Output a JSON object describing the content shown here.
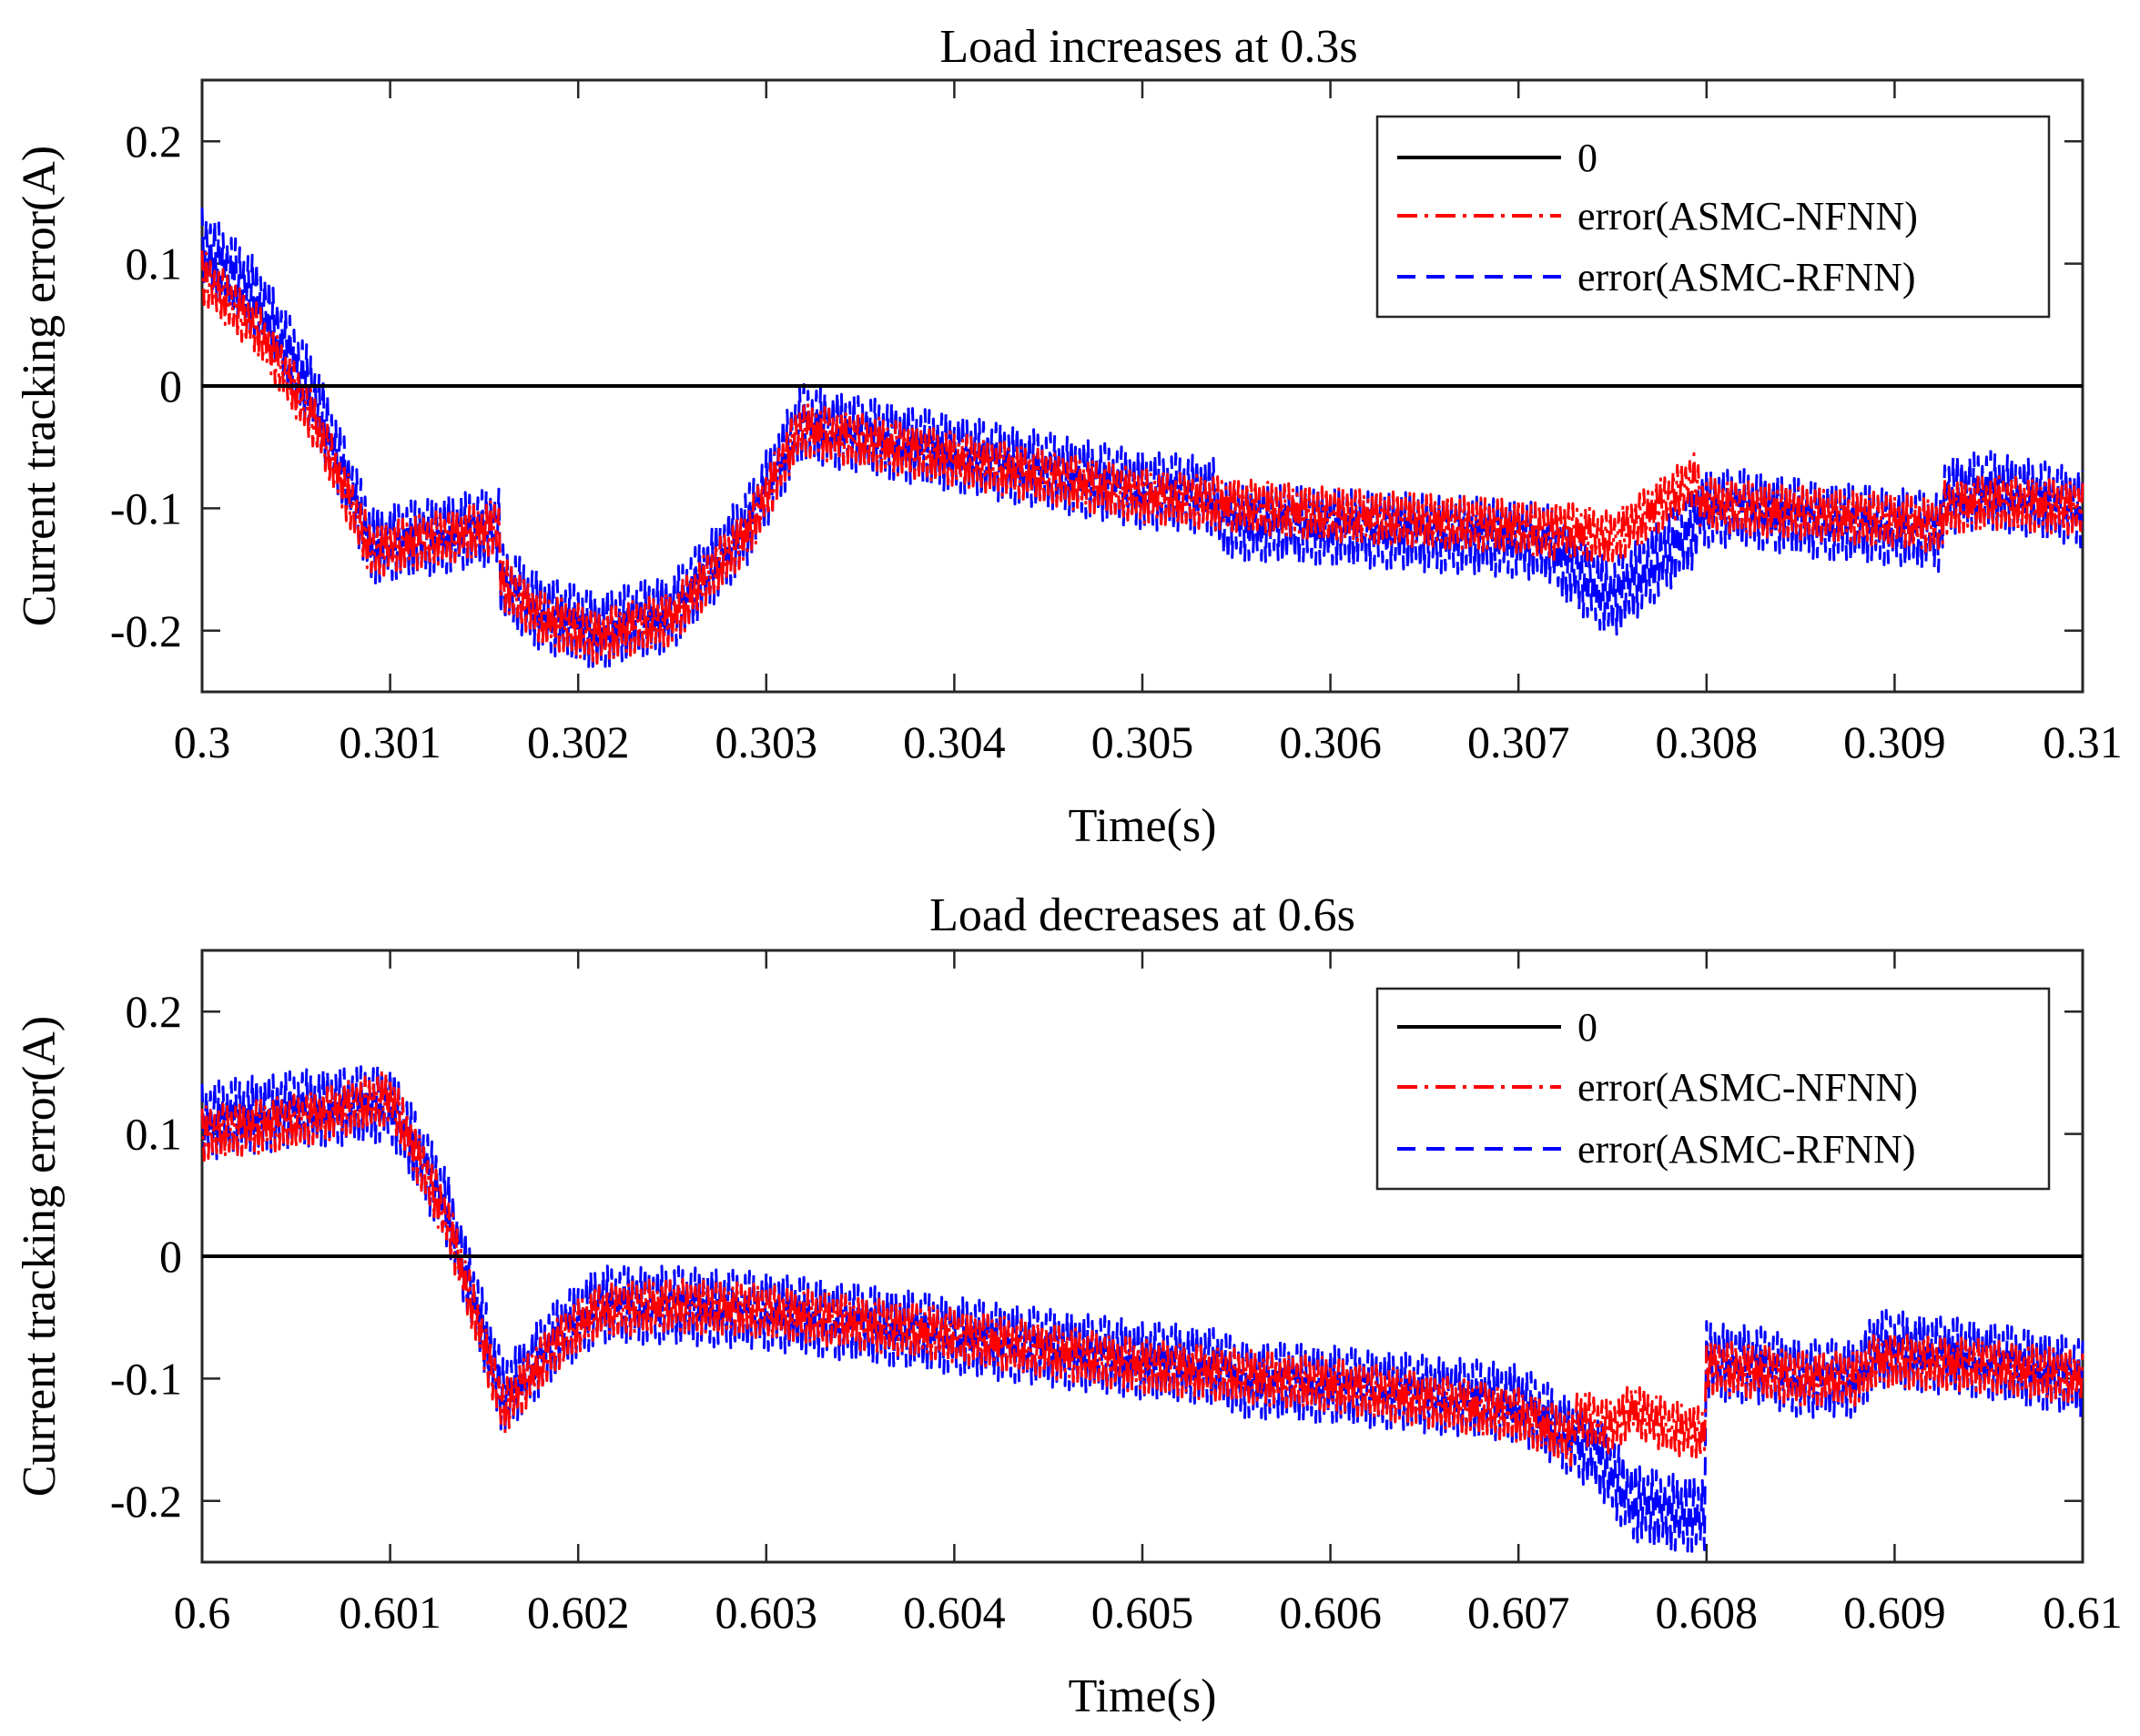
{
  "chart_data": [
    {
      "type": "line",
      "title": "Load increases at 0.3s",
      "xlabel": "Time(s)",
      "ylabel": "Current tracking error(A)",
      "xlim": [
        0.3,
        0.31
      ],
      "ylim": [
        -0.25,
        0.25
      ],
      "xticks": [
        0.3,
        0.301,
        0.302,
        0.303,
        0.304,
        0.305,
        0.306,
        0.307,
        0.308,
        0.309,
        0.31
      ],
      "xtick_labels": [
        "0.3",
        "0.301",
        "0.302",
        "0.303",
        "0.304",
        "0.305",
        "0.306",
        "0.307",
        "0.308",
        "0.309",
        "0.31"
      ],
      "yticks": [
        0.2,
        0.1,
        0,
        -0.1,
        -0.2
      ],
      "ytick_labels": [
        "0.2",
        "0.1",
        "0",
        "-0.1",
        "-0.2"
      ],
      "legend_position": "top-right",
      "series": [
        {
          "name": "0",
          "color": "#000000",
          "style": "solid",
          "ripple": 0,
          "x": [
            0.3,
            0.31
          ],
          "y": [
            0,
            0
          ]
        },
        {
          "name": "error(ASMC-NFNN)",
          "color": "#ff0000",
          "style": "dashdot",
          "ripple": 0.022,
          "x": [
            0.3,
            0.3003,
            0.3006,
            0.3009,
            0.30158,
            0.30159,
            0.3018,
            0.3021,
            0.3025,
            0.3029,
            0.30318,
            0.3035,
            0.304,
            0.305,
            0.306,
            0.307,
            0.30719,
            0.3072,
            0.3075,
            0.30795,
            0.30796,
            0.3082,
            0.3086,
            0.309,
            0.30925,
            0.30926,
            0.3095,
            0.31
          ],
          "y": [
            0.09,
            0.045,
            -0.03,
            -0.135,
            -0.115,
            -0.16,
            -0.19,
            -0.205,
            -0.19,
            -0.12,
            -0.035,
            -0.045,
            -0.06,
            -0.09,
            -0.105,
            -0.115,
            -0.12,
            -0.115,
            -0.125,
            -0.075,
            -0.095,
            -0.1,
            -0.105,
            -0.11,
            -0.115,
            -0.1,
            -0.095,
            -0.1
          ]
        },
        {
          "name": "error(ASMC-RFNN)",
          "color": "#0000ff",
          "style": "dashed",
          "ripple": 0.032,
          "x": [
            0.3,
            0.3003,
            0.3006,
            0.3009,
            0.30158,
            0.30159,
            0.3018,
            0.3021,
            0.3025,
            0.3029,
            0.30318,
            0.3035,
            0.304,
            0.305,
            0.30539,
            0.3054,
            0.306,
            0.307,
            0.30719,
            0.3072,
            0.3075,
            0.30795,
            0.30796,
            0.3082,
            0.3086,
            0.309,
            0.30925,
            0.30926,
            0.3095,
            0.31
          ],
          "y": [
            0.115,
            0.07,
            -0.01,
            -0.13,
            -0.115,
            -0.16,
            -0.185,
            -0.2,
            -0.185,
            -0.115,
            -0.03,
            -0.04,
            -0.055,
            -0.085,
            -0.09,
            -0.11,
            -0.115,
            -0.125,
            -0.13,
            -0.14,
            -0.175,
            -0.115,
            -0.1,
            -0.1,
            -0.11,
            -0.115,
            -0.12,
            -0.09,
            -0.085,
            -0.1
          ]
        }
      ]
    },
    {
      "type": "line",
      "title": "Load decreases at 0.6s",
      "xlabel": "Time(s)",
      "ylabel": "Current tracking error(A)",
      "xlim": [
        0.6,
        0.61
      ],
      "ylim": [
        -0.25,
        0.25
      ],
      "xticks": [
        0.6,
        0.601,
        0.602,
        0.603,
        0.604,
        0.605,
        0.606,
        0.607,
        0.608,
        0.609,
        0.61
      ],
      "xtick_labels": [
        "0.6",
        "0.601",
        "0.602",
        "0.603",
        "0.604",
        "0.605",
        "0.606",
        "0.607",
        "0.608",
        "0.609",
        "0.61"
      ],
      "yticks": [
        0.2,
        0.1,
        0,
        -0.1,
        -0.2
      ],
      "ytick_labels": [
        "0.2",
        "0.1",
        "0",
        "-0.1",
        "-0.2"
      ],
      "legend_position": "top-right",
      "series": [
        {
          "name": "0",
          "color": "#000000",
          "style": "solid",
          "ripple": 0,
          "x": [
            0.6,
            0.61
          ],
          "y": [
            0,
            0
          ]
        },
        {
          "name": "error(ASMC-NFNN)",
          "color": "#ff0000",
          "style": "dashdot",
          "ripple": 0.022,
          "x": [
            0.6,
            0.6005,
            0.601,
            0.6013,
            0.6016,
            0.6019,
            0.6021,
            0.6025,
            0.603,
            0.604,
            0.605,
            0.606,
            0.607,
            0.60729,
            0.6073,
            0.6075,
            0.6076,
            0.6078,
            0.60799,
            0.608,
            0.6083,
            0.6085,
            0.6088,
            0.6089,
            0.6095,
            0.61
          ],
          "y": [
            0.1,
            0.11,
            0.13,
            0.03,
            -0.125,
            -0.07,
            -0.045,
            -0.04,
            -0.045,
            -0.065,
            -0.09,
            -0.105,
            -0.13,
            -0.15,
            -0.13,
            -0.14,
            -0.125,
            -0.14,
            -0.145,
            -0.09,
            -0.095,
            -0.1,
            -0.1,
            -0.085,
            -0.09,
            -0.1
          ]
        },
        {
          "name": "error(ASMC-RFNN)",
          "color": "#0000ff",
          "style": "dashed",
          "ripple": 0.032,
          "x": [
            0.6,
            0.6005,
            0.601,
            0.6013,
            0.6016,
            0.6019,
            0.6021,
            0.6025,
            0.603,
            0.604,
            0.605,
            0.6054,
            0.6055,
            0.606,
            0.607,
            0.6074,
            0.6076,
            0.6078,
            0.60799,
            0.608,
            0.6083,
            0.6085,
            0.6088,
            0.6089,
            0.6095,
            0.61
          ],
          "y": [
            0.11,
            0.12,
            0.125,
            0.04,
            -0.115,
            -0.065,
            -0.04,
            -0.04,
            -0.045,
            -0.065,
            -0.085,
            -0.09,
            -0.1,
            -0.105,
            -0.12,
            -0.16,
            -0.2,
            -0.21,
            -0.21,
            -0.085,
            -0.09,
            -0.1,
            -0.1,
            -0.075,
            -0.085,
            -0.1
          ]
        }
      ]
    }
  ]
}
